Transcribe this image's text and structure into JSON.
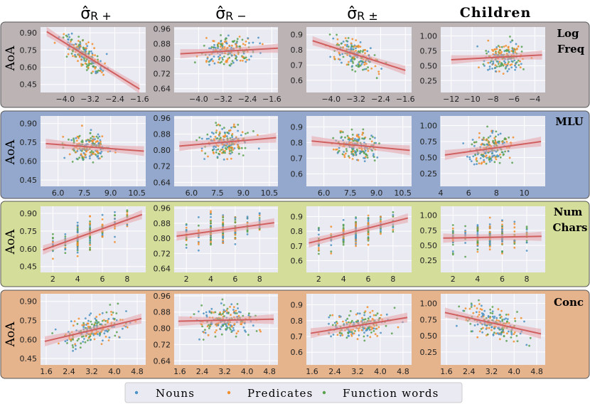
{
  "column_headers": [
    {
      "symbol": "σ̂",
      "sub": "R +"
    },
    {
      "symbol": "σ̂",
      "sub": "R −"
    },
    {
      "symbol": "σ̂",
      "sub": "R ±"
    },
    {
      "text": "Children"
    }
  ],
  "ylabel": "AoA",
  "row_labels": [
    [
      "Log",
      "Freq"
    ],
    [
      "MLU"
    ],
    [
      "Num",
      "Chars"
    ],
    [
      "Conc"
    ]
  ],
  "legend": [
    {
      "label": "Nouns",
      "color": "#4c92c3"
    },
    {
      "label": "Predicates",
      "color": "#f28e2b"
    },
    {
      "label": "Function words",
      "color": "#59a14f"
    }
  ],
  "colors": {
    "row_backgrounds": [
      "#bcb3b5",
      "#93a8cc",
      "#d5dd9a",
      "#e5b38c"
    ],
    "plot_bg": "#eaeaf2",
    "grid": "#ffffff",
    "regression": "#d06060",
    "band": "#e6a3a8"
  },
  "chart_data": [
    {
      "type": "scatter",
      "row": "Log Freq",
      "col": "σ̂R+",
      "xticks": [
        "−4.0",
        "−3.2",
        "−2.4",
        "−1.6"
      ],
      "yticks": [
        "0.90",
        "0.75",
        "0.60",
        "0.45"
      ],
      "xlim": [
        -4.8,
        -1.4
      ],
      "ylim": [
        0.38,
        0.95
      ],
      "fit": {
        "x": [
          -4.6,
          -1.6
        ],
        "y": [
          0.91,
          0.41
        ]
      },
      "cluster": {
        "x": [
          -4.4,
          -2.4
        ],
        "y": [
          0.5,
          0.93
        ]
      }
    },
    {
      "type": "scatter",
      "row": "Log Freq",
      "col": "σ̂R−",
      "xticks": [
        "−4.0",
        "−3.2",
        "−2.4",
        "−1.6"
      ],
      "yticks": [
        "0.96",
        "0.88",
        "0.80",
        "0.72",
        "0.64"
      ],
      "xlim": [
        -4.8,
        -1.4
      ],
      "ylim": [
        0.62,
        0.97
      ],
      "fit": {
        "x": [
          -4.6,
          -1.4
        ],
        "y": [
          0.827,
          0.857
        ]
      },
      "cluster": {
        "x": [
          -4.4,
          -1.6
        ],
        "y": [
          0.66,
          0.95
        ]
      }
    },
    {
      "type": "scatter",
      "row": "Log Freq",
      "col": "σ̂R±",
      "xticks": [
        "−4.0",
        "−3.2",
        "−2.4",
        "−1.6"
      ],
      "yticks": [
        "0.9",
        "0.8",
        "0.7",
        "0.6"
      ],
      "xlim": [
        -4.8,
        -1.4
      ],
      "ylim": [
        0.52,
        0.95
      ],
      "fit": {
        "x": [
          -4.6,
          -1.6
        ],
        "y": [
          0.86,
          0.665
        ]
      },
      "cluster": {
        "x": [
          -4.4,
          -2.0
        ],
        "y": [
          0.58,
          0.93
        ]
      }
    },
    {
      "type": "scatter",
      "row": "Log Freq",
      "col": "Children",
      "xticks": [
        "−12",
        "−10",
        "−8",
        "−6",
        "−4"
      ],
      "yticks": [
        "1.00",
        "0.75",
        "0.50",
        "0.25"
      ],
      "xlim": [
        -13,
        -3
      ],
      "ylim": [
        0.05,
        1.15
      ],
      "fit": {
        "x": [
          -12,
          -3.3
        ],
        "y": [
          0.6,
          0.68
        ]
      },
      "cluster": {
        "x": [
          -10,
          -4
        ],
        "y": [
          0.1,
          1.05
        ]
      }
    },
    {
      "type": "scatter",
      "row": "MLU",
      "col": "σ̂R+",
      "xticks": [
        "6.0",
        "7.5",
        "9.0",
        "10.5"
      ],
      "yticks": [
        "0.90",
        "0.75",
        "0.60",
        "0.45"
      ],
      "xlim": [
        5.0,
        11.0
      ],
      "ylim": [
        0.4,
        0.96
      ],
      "fit": {
        "x": [
          5.3,
          10.9
        ],
        "y": [
          0.74,
          0.68
        ]
      },
      "cluster": {
        "x": [
          6.0,
          9.5
        ],
        "y": [
          0.45,
          0.93
        ]
      }
    },
    {
      "type": "scatter",
      "row": "MLU",
      "col": "σ̂R−",
      "xticks": [
        "6.0",
        "7.5",
        "9.0",
        "10.5"
      ],
      "yticks": [
        "0.96",
        "0.88",
        "0.80",
        "0.72",
        "0.64"
      ],
      "xlim": [
        5.0,
        11.0
      ],
      "ylim": [
        0.62,
        0.97
      ],
      "fit": {
        "x": [
          5.3,
          10.9
        ],
        "y": [
          0.82,
          0.862
        ]
      },
      "cluster": {
        "x": [
          6.0,
          10.0
        ],
        "y": [
          0.66,
          0.95
        ]
      }
    },
    {
      "type": "scatter",
      "row": "MLU",
      "col": "σ̂R±",
      "xticks": [
        "6.0",
        "7.5",
        "9.0",
        "10.5"
      ],
      "yticks": [
        "0.9",
        "0.8",
        "0.7",
        "0.6"
      ],
      "xlim": [
        5.0,
        11.0
      ],
      "ylim": [
        0.52,
        0.97
      ],
      "fit": {
        "x": [
          5.3,
          10.9
        ],
        "y": [
          0.81,
          0.75
        ]
      },
      "cluster": {
        "x": [
          6.0,
          9.8
        ],
        "y": [
          0.57,
          0.93
        ]
      }
    },
    {
      "type": "scatter",
      "row": "MLU",
      "col": "Children",
      "xticks": [
        "4",
        "6",
        "8",
        "10"
      ],
      "yticks": [
        "1.00",
        "0.75",
        "0.50",
        "0.25"
      ],
      "xlim": [
        4.0,
        11.5
      ],
      "ylim": [
        0.05,
        1.15
      ],
      "fit": {
        "x": [
          4.3,
          11.2
        ],
        "y": [
          0.54,
          0.75
        ]
      },
      "cluster": {
        "x": [
          5.0,
          10.0
        ],
        "y": [
          0.1,
          1.05
        ]
      }
    },
    {
      "type": "scatter",
      "row": "Num Chars",
      "col": "σ̂R+",
      "xticks": [
        "2",
        "4",
        "6",
        "8"
      ],
      "yticks": [
        "0.90",
        "0.75",
        "0.60",
        "0.45"
      ],
      "xlim": [
        1.0,
        9.5
      ],
      "ylim": [
        0.4,
        0.96
      ],
      "fit": {
        "x": [
          1.2,
          9.2
        ],
        "y": [
          0.59,
          0.89
        ]
      },
      "cluster": {
        "x": [
          2,
          8
        ],
        "y": [
          0.45,
          0.93
        ]
      },
      "discrete": true
    },
    {
      "type": "scatter",
      "row": "Num Chars",
      "col": "σ̂R−",
      "xticks": [
        "2",
        "4",
        "6",
        "8"
      ],
      "yticks": [
        "0.96",
        "0.88",
        "0.80",
        "0.72",
        "0.64"
      ],
      "xlim": [
        1.0,
        9.5
      ],
      "ylim": [
        0.62,
        0.97
      ],
      "fit": {
        "x": [
          1.2,
          9.2
        ],
        "y": [
          0.812,
          0.883
        ]
      },
      "cluster": {
        "x": [
          2,
          8
        ],
        "y": [
          0.66,
          0.95
        ]
      },
      "discrete": true
    },
    {
      "type": "scatter",
      "row": "Num Chars",
      "col": "σ̂R±",
      "xticks": [
        "2",
        "4",
        "6",
        "8"
      ],
      "yticks": [
        "0.9",
        "0.8",
        "0.7",
        "0.6"
      ],
      "xlim": [
        1.0,
        9.5
      ],
      "ylim": [
        0.52,
        0.97
      ],
      "fit": {
        "x": [
          1.2,
          9.2
        ],
        "y": [
          0.72,
          0.89
        ]
      },
      "cluster": {
        "x": [
          2,
          8
        ],
        "y": [
          0.57,
          0.93
        ]
      },
      "discrete": true
    },
    {
      "type": "scatter",
      "row": "Num Chars",
      "col": "Children",
      "xticks": [
        "2",
        "4",
        "6",
        "8"
      ],
      "yticks": [
        "1.00",
        "0.75",
        "0.50",
        "0.25"
      ],
      "xlim": [
        1.0,
        9.5
      ],
      "ylim": [
        0.05,
        1.15
      ],
      "fit": {
        "x": [
          1.2,
          9.2
        ],
        "y": [
          0.62,
          0.65
        ]
      },
      "cluster": {
        "x": [
          2,
          8
        ],
        "y": [
          0.12,
          1.05
        ]
      },
      "discrete": true
    },
    {
      "type": "scatter",
      "row": "Conc",
      "col": "σ̂R+",
      "xticks": [
        "1.6",
        "2.4",
        "3.2",
        "4.0",
        "4.8"
      ],
      "yticks": [
        "0.90",
        "0.75",
        "0.60",
        "0.45"
      ],
      "xlim": [
        1.4,
        5.1
      ],
      "ylim": [
        0.4,
        0.96
      ],
      "fit": {
        "x": [
          1.55,
          4.95
        ],
        "y": [
          0.585,
          0.765
        ]
      },
      "cluster": {
        "x": [
          1.6,
          4.95
        ],
        "y": [
          0.45,
          0.93
        ]
      }
    },
    {
      "type": "scatter",
      "row": "Conc",
      "col": "σ̂R−",
      "xticks": [
        "1.6",
        "2.4",
        "3.2",
        "4.0",
        "4.8"
      ],
      "yticks": [
        "0.96",
        "0.88",
        "0.80",
        "0.72",
        "0.64"
      ],
      "xlim": [
        1.4,
        5.1
      ],
      "ylim": [
        0.62,
        0.97
      ],
      "fit": {
        "x": [
          1.55,
          4.95
        ],
        "y": [
          0.835,
          0.845
        ]
      },
      "cluster": {
        "x": [
          1.6,
          4.95
        ],
        "y": [
          0.66,
          0.95
        ]
      }
    },
    {
      "type": "scatter",
      "row": "Conc",
      "col": "σ̂R±",
      "xticks": [
        "1.6",
        "2.4",
        "3.2",
        "4.0",
        "4.8"
      ],
      "yticks": [
        "0.9",
        "0.8",
        "0.7",
        "0.6"
      ],
      "xlim": [
        1.4,
        5.1
      ],
      "ylim": [
        0.52,
        0.97
      ],
      "fit": {
        "x": [
          1.55,
          4.95
        ],
        "y": [
          0.72,
          0.82
        ]
      },
      "cluster": {
        "x": [
          1.6,
          4.95
        ],
        "y": [
          0.57,
          0.93
        ]
      }
    },
    {
      "type": "scatter",
      "row": "Conc",
      "col": "Children",
      "xticks": [
        "1.6",
        "2.4",
        "3.2",
        "4.0",
        "4.8"
      ],
      "yticks": [
        "1.00",
        "0.75",
        "0.50",
        "0.25"
      ],
      "xlim": [
        1.4,
        5.1
      ],
      "ylim": [
        0.05,
        1.15
      ],
      "fit": {
        "x": [
          1.55,
          4.95
        ],
        "y": [
          0.86,
          0.53
        ]
      },
      "cluster": {
        "x": [
          1.6,
          4.95
        ],
        "y": [
          0.12,
          1.05
        ]
      }
    }
  ]
}
